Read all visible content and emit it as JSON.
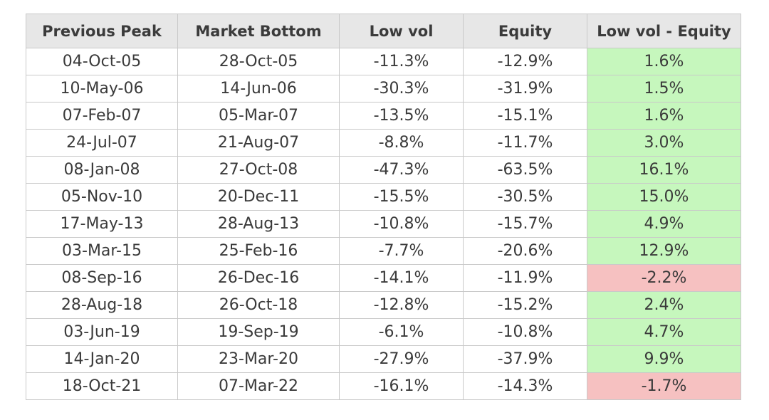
{
  "table": {
    "headers": [
      "Previous Peak",
      "Market Bottom",
      "Low vol",
      "Equity",
      "Low vol - Equity"
    ],
    "colors": {
      "header_bg": "#e7e7e7",
      "positive_bg": "#c6f7bd",
      "negative_bg": "#f6c1c1",
      "border": "#c9c9c9"
    },
    "rows": [
      {
        "peak": "04-Oct-05",
        "bottom": "28-Oct-05",
        "lowvol": "-11.3%",
        "equity": "-12.9%",
        "diff": "1.6%",
        "sign": "pos"
      },
      {
        "peak": "10-May-06",
        "bottom": "14-Jun-06",
        "lowvol": "-30.3%",
        "equity": "-31.9%",
        "diff": "1.5%",
        "sign": "pos"
      },
      {
        "peak": "07-Feb-07",
        "bottom": "05-Mar-07",
        "lowvol": "-13.5%",
        "equity": "-15.1%",
        "diff": "1.6%",
        "sign": "pos"
      },
      {
        "peak": "24-Jul-07",
        "bottom": "21-Aug-07",
        "lowvol": "-8.8%",
        "equity": "-11.7%",
        "diff": "3.0%",
        "sign": "pos"
      },
      {
        "peak": "08-Jan-08",
        "bottom": "27-Oct-08",
        "lowvol": "-47.3%",
        "equity": "-63.5%",
        "diff": "16.1%",
        "sign": "pos"
      },
      {
        "peak": "05-Nov-10",
        "bottom": "20-Dec-11",
        "lowvol": "-15.5%",
        "equity": "-30.5%",
        "diff": "15.0%",
        "sign": "pos"
      },
      {
        "peak": "17-May-13",
        "bottom": "28-Aug-13",
        "lowvol": "-10.8%",
        "equity": "-15.7%",
        "diff": "4.9%",
        "sign": "pos"
      },
      {
        "peak": "03-Mar-15",
        "bottom": "25-Feb-16",
        "lowvol": "-7.7%",
        "equity": "-20.6%",
        "diff": "12.9%",
        "sign": "pos"
      },
      {
        "peak": "08-Sep-16",
        "bottom": "26-Dec-16",
        "lowvol": "-14.1%",
        "equity": "-11.9%",
        "diff": "-2.2%",
        "sign": "neg"
      },
      {
        "peak": "28-Aug-18",
        "bottom": "26-Oct-18",
        "lowvol": "-12.8%",
        "equity": "-15.2%",
        "diff": "2.4%",
        "sign": "pos"
      },
      {
        "peak": "03-Jun-19",
        "bottom": "19-Sep-19",
        "lowvol": "-6.1%",
        "equity": "-10.8%",
        "diff": "4.7%",
        "sign": "pos"
      },
      {
        "peak": "14-Jan-20",
        "bottom": "23-Mar-20",
        "lowvol": "-27.9%",
        "equity": "-37.9%",
        "diff": "9.9%",
        "sign": "pos"
      },
      {
        "peak": "18-Oct-21",
        "bottom": "07-Mar-22",
        "lowvol": "-16.1%",
        "equity": "-14.3%",
        "diff": "-1.7%",
        "sign": "neg"
      }
    ]
  }
}
